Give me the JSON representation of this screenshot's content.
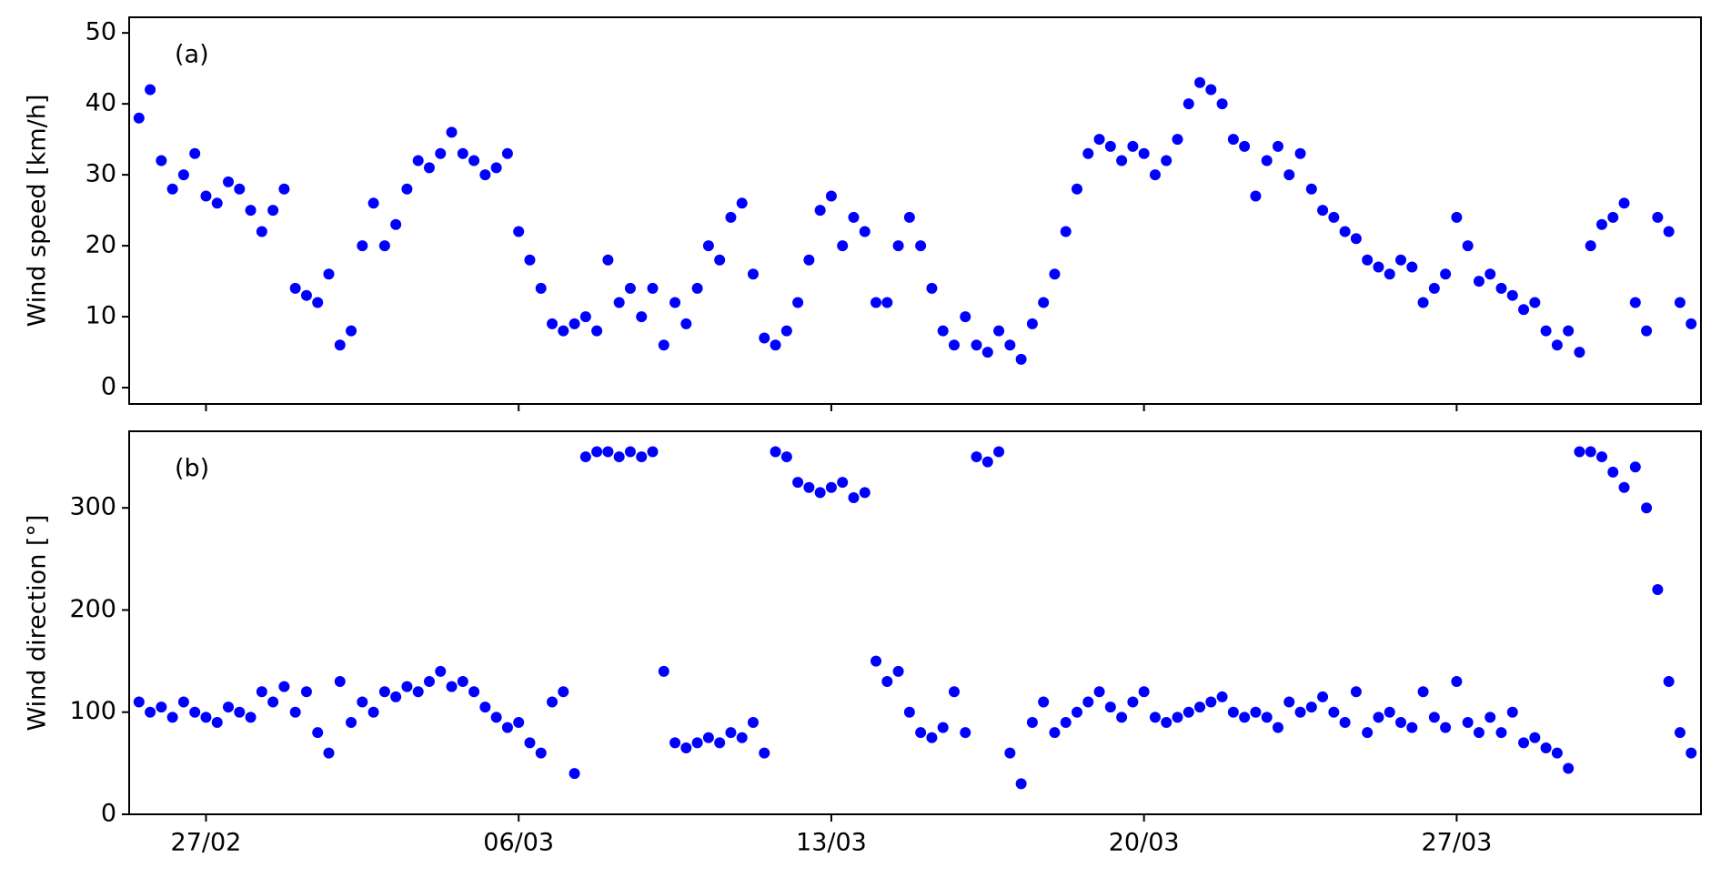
{
  "chart_data": [
    {
      "type": "scatter",
      "annotation": "(a)",
      "y_label": "Wind speed [km/h]",
      "color": "#0000ff",
      "xlim": [
        -1.72,
        33.47
      ],
      "ylim": [
        -2.3,
        52.2
      ],
      "yticks": [
        0,
        10,
        20,
        30,
        40,
        50
      ],
      "x": [
        -1.5,
        -1.25,
        -1,
        -0.75,
        -0.5,
        -0.25,
        0,
        0.25,
        0.5,
        0.75,
        1,
        1.25,
        1.5,
        1.75,
        2,
        2.25,
        2.5,
        2.75,
        3,
        3.25,
        3.5,
        3.75,
        4,
        4.25,
        4.5,
        4.75,
        5,
        5.25,
        5.5,
        5.75,
        6,
        6.25,
        6.5,
        6.75,
        7,
        7.25,
        7.5,
        7.75,
        8,
        8.25,
        8.5,
        8.75,
        9,
        9.25,
        9.5,
        9.75,
        10,
        10.25,
        10.5,
        10.75,
        11,
        11.25,
        11.5,
        11.75,
        12,
        12.25,
        12.5,
        12.75,
        13,
        13.25,
        13.5,
        13.75,
        14,
        14.25,
        14.5,
        14.75,
        15,
        15.25,
        15.5,
        15.75,
        16,
        16.25,
        16.5,
        16.75,
        17,
        17.25,
        17.5,
        17.75,
        18,
        18.25,
        18.5,
        18.75,
        19,
        19.25,
        19.5,
        19.75,
        20,
        20.25,
        20.5,
        20.75,
        21,
        21.25,
        21.5,
        21.75,
        22,
        22.25,
        22.5,
        22.75,
        23,
        23.25,
        23.5,
        23.75,
        24,
        24.25,
        24.5,
        24.75,
        25,
        25.25,
        25.5,
        25.75,
        26,
        26.25,
        26.5,
        26.75,
        27,
        27.25,
        27.5,
        27.75,
        28,
        28.25,
        28.5,
        28.75,
        29,
        29.25,
        29.5,
        29.75,
        30,
        30.25,
        30.5,
        30.75,
        31,
        31.25,
        31.5,
        31.75,
        32,
        32.25,
        32.5,
        32.75,
        33,
        33.25
      ],
      "values": [
        38,
        42,
        32,
        28,
        30,
        33,
        27,
        26,
        29,
        28,
        25,
        22,
        25,
        28,
        14,
        13,
        12,
        16,
        6,
        8,
        20,
        26,
        20,
        23,
        28,
        32,
        31,
        33,
        36,
        33,
        32,
        30,
        31,
        33,
        22,
        18,
        14,
        9,
        8,
        9,
        10,
        8,
        18,
        12,
        14,
        10,
        14,
        6,
        12,
        9,
        14,
        20,
        18,
        24,
        26,
        16,
        7,
        6,
        8,
        12,
        18,
        25,
        27,
        20,
        24,
        22,
        12,
        12,
        20,
        24,
        20,
        14,
        8,
        6,
        10,
        6,
        5,
        8,
        6,
        4,
        9,
        12,
        16,
        22,
        28,
        33,
        35,
        34,
        32,
        34,
        33,
        30,
        32,
        35,
        40,
        43,
        42,
        40,
        35,
        34,
        27,
        32,
        34,
        30,
        33,
        28,
        25,
        24,
        22,
        21,
        18,
        17,
        16,
        18,
        17,
        12,
        14,
        16,
        24,
        20,
        15,
        16,
        14,
        13,
        11,
        12,
        8,
        6,
        8,
        5,
        20,
        23,
        24,
        26,
        12,
        8,
        24,
        22,
        12,
        9
      ]
    },
    {
      "type": "scatter",
      "annotation": "(b)",
      "y_label": "Wind direction [°]",
      "color": "#0000ff",
      "xlim": [
        -1.72,
        33.47
      ],
      "ylim": [
        0,
        375
      ],
      "yticks": [
        0,
        100,
        200,
        300
      ],
      "xticks": [
        {
          "value": 0,
          "label": "27/02"
        },
        {
          "value": 7,
          "label": "06/03"
        },
        {
          "value": 14,
          "label": "13/03"
        },
        {
          "value": 21,
          "label": "20/03"
        },
        {
          "value": 28,
          "label": "27/03"
        }
      ],
      "x": [
        -1.5,
        -1.25,
        -1,
        -0.75,
        -0.5,
        -0.25,
        0,
        0.25,
        0.5,
        0.75,
        1,
        1.25,
        1.5,
        1.75,
        2,
        2.25,
        2.5,
        2.75,
        3,
        3.25,
        3.5,
        3.75,
        4,
        4.25,
        4.5,
        4.75,
        5,
        5.25,
        5.5,
        5.75,
        6,
        6.25,
        6.5,
        6.75,
        7,
        7.25,
        7.5,
        7.75,
        8,
        8.25,
        8.5,
        8.75,
        9,
        9.25,
        9.5,
        9.75,
        10,
        10.25,
        10.5,
        10.75,
        11,
        11.25,
        11.5,
        11.75,
        12,
        12.25,
        12.5,
        12.75,
        13,
        13.25,
        13.5,
        13.75,
        14,
        14.25,
        14.5,
        14.75,
        15,
        15.25,
        15.5,
        15.75,
        16,
        16.25,
        16.5,
        16.75,
        17,
        17.25,
        17.5,
        17.75,
        18,
        18.25,
        18.5,
        18.75,
        19,
        19.25,
        19.5,
        19.75,
        20,
        20.25,
        20.5,
        20.75,
        21,
        21.25,
        21.5,
        21.75,
        22,
        22.25,
        22.5,
        22.75,
        23,
        23.25,
        23.5,
        23.75,
        24,
        24.25,
        24.5,
        24.75,
        25,
        25.25,
        25.5,
        25.75,
        26,
        26.25,
        26.5,
        26.75,
        27,
        27.25,
        27.5,
        27.75,
        28,
        28.25,
        28.5,
        28.75,
        29,
        29.25,
        29.5,
        29.75,
        30,
        30.25,
        30.5,
        30.75,
        31,
        31.25,
        31.5,
        31.75,
        32,
        32.25,
        32.5,
        32.75,
        33,
        33.25
      ],
      "values": [
        110,
        100,
        105,
        95,
        110,
        100,
        95,
        90,
        105,
        100,
        95,
        120,
        110,
        125,
        100,
        120,
        80,
        60,
        130,
        90,
        110,
        100,
        120,
        115,
        125,
        120,
        130,
        140,
        125,
        130,
        120,
        105,
        95,
        85,
        90,
        70,
        60,
        110,
        120,
        40,
        350,
        355,
        355,
        350,
        355,
        350,
        355,
        140,
        70,
        65,
        70,
        75,
        70,
        80,
        75,
        90,
        60,
        355,
        350,
        325,
        320,
        315,
        320,
        325,
        310,
        315,
        150,
        130,
        140,
        100,
        80,
        75,
        85,
        120,
        80,
        350,
        345,
        355,
        60,
        30,
        90,
        110,
        80,
        90,
        100,
        110,
        120,
        105,
        95,
        110,
        120,
        95,
        90,
        95,
        100,
        105,
        110,
        115,
        100,
        95,
        100,
        95,
        85,
        110,
        100,
        105,
        115,
        100,
        90,
        120,
        80,
        95,
        100,
        90,
        85,
        120,
        95,
        85,
        130,
        90,
        80,
        95,
        80,
        100,
        70,
        75,
        65,
        60,
        45,
        355,
        355,
        350,
        335,
        320,
        340,
        300,
        220,
        130,
        80,
        60
      ]
    }
  ]
}
